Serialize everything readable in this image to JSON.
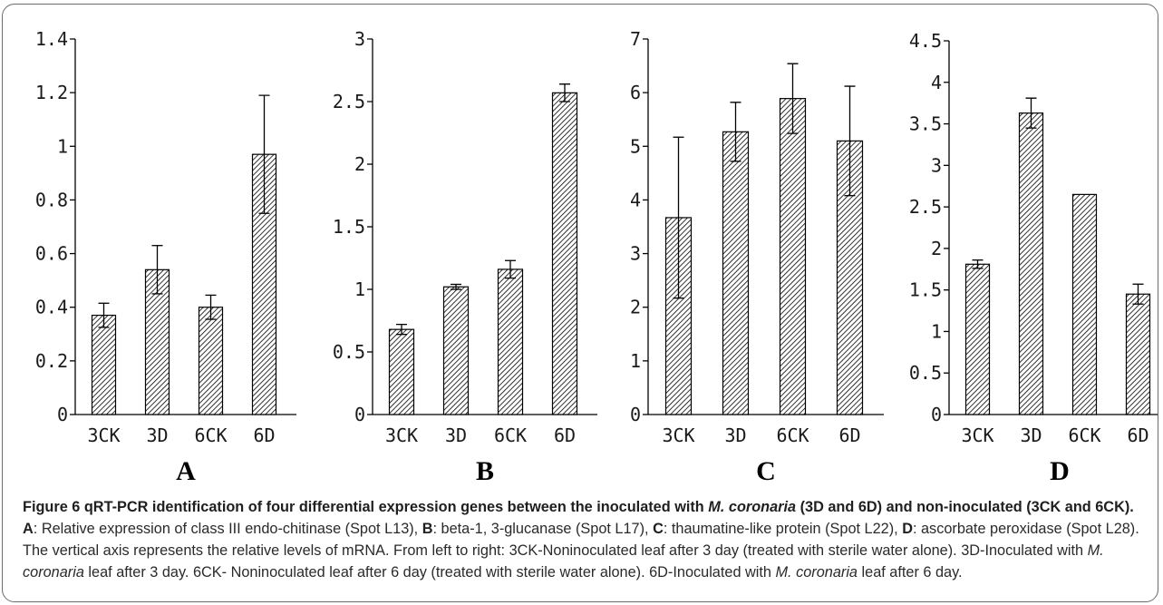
{
  "chart_data": [
    {
      "type": "bar",
      "panel": "A",
      "categories": [
        "3CK",
        "3D",
        "6CK",
        "6D"
      ],
      "values": [
        0.37,
        0.54,
        0.4,
        0.97
      ],
      "errors": [
        0.045,
        0.09,
        0.045,
        0.22
      ],
      "ylim": [
        0,
        1.4
      ],
      "yticks": [
        "0",
        "0.2",
        "0.4",
        "0.6",
        "0.8",
        "1",
        "1.2",
        "1.4"
      ]
    },
    {
      "type": "bar",
      "panel": "B",
      "categories": [
        "3CK",
        "3D",
        "6CK",
        "6D"
      ],
      "values": [
        0.68,
        1.02,
        1.16,
        2.57
      ],
      "errors": [
        0.04,
        0.02,
        0.07,
        0.07
      ],
      "ylim": [
        0,
        3
      ],
      "yticks": [
        "0",
        "0.5",
        "1",
        "1.5",
        "2",
        "2.5",
        "3"
      ]
    },
    {
      "type": "bar",
      "panel": "C",
      "categories": [
        "3CK",
        "3D",
        "6CK",
        "6D"
      ],
      "values": [
        3.67,
        5.27,
        5.89,
        5.1
      ],
      "errors": [
        1.5,
        0.55,
        0.65,
        1.02
      ],
      "ylim": [
        0,
        7
      ],
      "yticks": [
        "0",
        "1",
        "2",
        "3",
        "4",
        "5",
        "6",
        "7"
      ]
    },
    {
      "type": "bar",
      "panel": "D",
      "categories": [
        "3CK",
        "3D",
        "6CK",
        "6D"
      ],
      "values": [
        1.81,
        3.63,
        2.65,
        1.45
      ],
      "errors": [
        0.05,
        0.18,
        0,
        0.12
      ],
      "ylim": [
        0,
        4.5
      ],
      "yticks": [
        "0",
        "0.5",
        "1",
        "1.5",
        "2",
        "2.5",
        "3",
        "3.5",
        "4",
        "4.5"
      ]
    }
  ],
  "caption": {
    "p1": "Figure 6",
    "p2": " qRT-PCR identification of four differential expression genes between the inoculated with ",
    "p3": "M. coronaria",
    "p4": " (3D and 6D) and non-inoculated (3CK and 6CK).",
    "p5": " ",
    "p6": "A",
    "p7": ": Relative expression of class III endo-chitinase (Spot L13), ",
    "p8": "B",
    "p9": ": beta-1, 3-glucanase (Spot L17), ",
    "p10": "C",
    "p11": ": thaumatine-like protein (Spot L22), ",
    "p12": "D",
    "p13": ": ascorbate peroxidase (Spot L28). The vertical axis represents the relative levels of mRNA. From left to right: 3CK-Noninoculated leaf after 3 day (treated with sterile water alone). 3D-Inoculated with ",
    "p14": "M. coronaria",
    "p15": " leaf after 3 day. 6CK- Noninoculated leaf after 6 day (treated with sterile water alone). 6D-Inoculated with ",
    "p16": "M. coronaria",
    "p17": " leaf after 6 day."
  }
}
